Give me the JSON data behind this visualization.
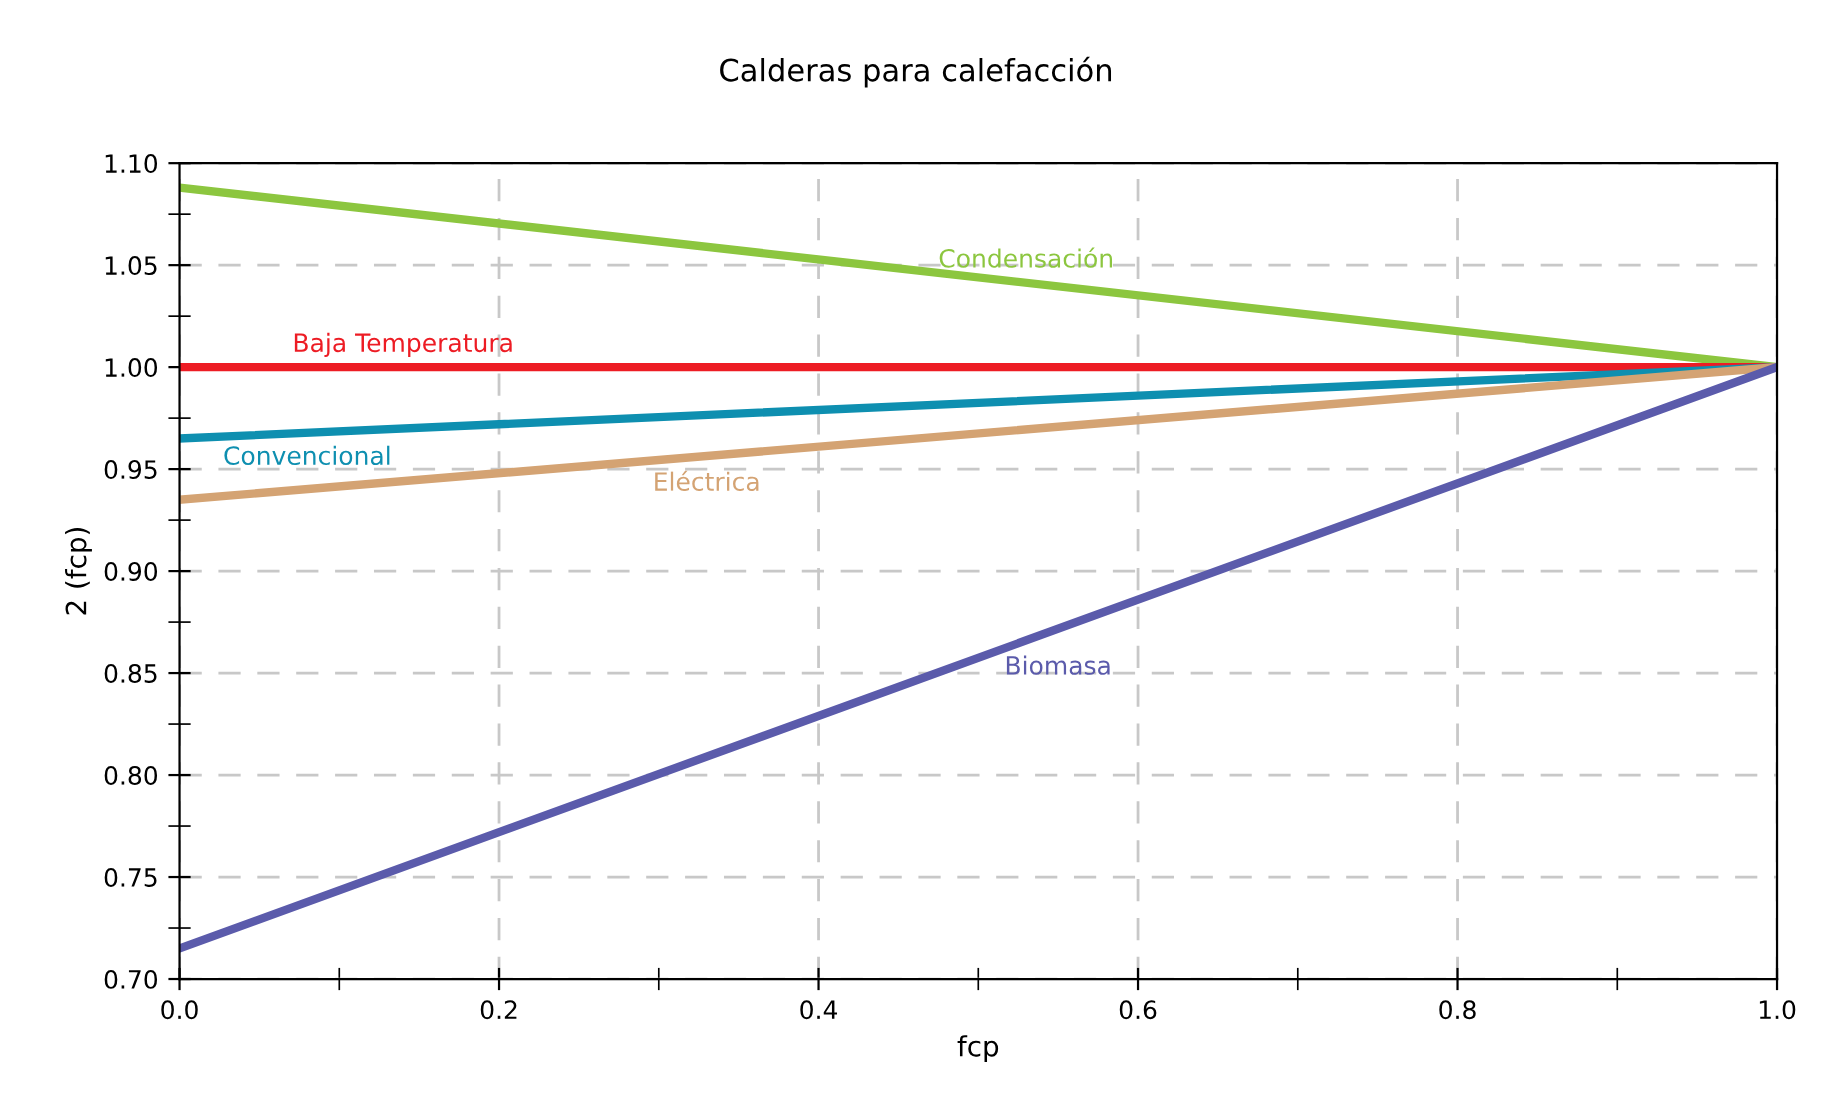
{
  "chart_data": {
    "type": "line",
    "title": "Calderas para calefacción",
    "xlabel": "fcp",
    "ylabel": "2 (fcp)",
    "x": [
      0.0,
      1.0
    ],
    "series": [
      {
        "name": "Condensación",
        "color": "#8cc63f",
        "values": [
          1.088,
          1.0
        ]
      },
      {
        "name": "Baja Temperatura",
        "color": "#ed1c24",
        "values": [
          1.0,
          1.0
        ]
      },
      {
        "name": "Convencional",
        "color": "#0e8fb0",
        "values": [
          0.965,
          1.0
        ]
      },
      {
        "name": "Eléctrica",
        "color": "#d4a373",
        "values": [
          0.935,
          1.0
        ]
      },
      {
        "name": "Biomasa",
        "color": "#5b5bab",
        "values": [
          0.715,
          1.0
        ]
      }
    ],
    "xlim": [
      0.0,
      1.0
    ],
    "ylim": [
      0.7,
      1.1
    ],
    "xticks": [
      {
        "value": 0.0,
        "label": "0.0"
      },
      {
        "value": 0.1,
        "label": null
      },
      {
        "value": 0.2,
        "label": "0.2"
      },
      {
        "value": 0.3,
        "label": null
      },
      {
        "value": 0.4,
        "label": "0.4"
      },
      {
        "value": 0.5,
        "label": null
      },
      {
        "value": 0.6,
        "label": "0.6"
      },
      {
        "value": 0.7,
        "label": null
      },
      {
        "value": 0.8,
        "label": "0.8"
      },
      {
        "value": 0.9,
        "label": null
      },
      {
        "value": 1.0,
        "label": "1.0"
      }
    ],
    "yticks": [
      {
        "value": 0.7,
        "label": "0.70"
      },
      {
        "value": 0.725,
        "label": null
      },
      {
        "value": 0.75,
        "label": "0.75"
      },
      {
        "value": 0.775,
        "label": null
      },
      {
        "value": 0.8,
        "label": "0.80"
      },
      {
        "value": 0.825,
        "label": null
      },
      {
        "value": 0.85,
        "label": "0.85"
      },
      {
        "value": 0.875,
        "label": null
      },
      {
        "value": 0.9,
        "label": "0.90"
      },
      {
        "value": 0.925,
        "label": null
      },
      {
        "value": 0.95,
        "label": "0.95"
      },
      {
        "value": 0.975,
        "label": null
      },
      {
        "value": 1.0,
        "label": "1.00"
      },
      {
        "value": 1.025,
        "label": null
      },
      {
        "value": 1.05,
        "label": "1.05"
      },
      {
        "value": 1.075,
        "label": null
      },
      {
        "value": 1.1,
        "label": "1.10"
      }
    ],
    "grid": true,
    "legend": false,
    "marker": "none",
    "line_style": "solid"
  }
}
